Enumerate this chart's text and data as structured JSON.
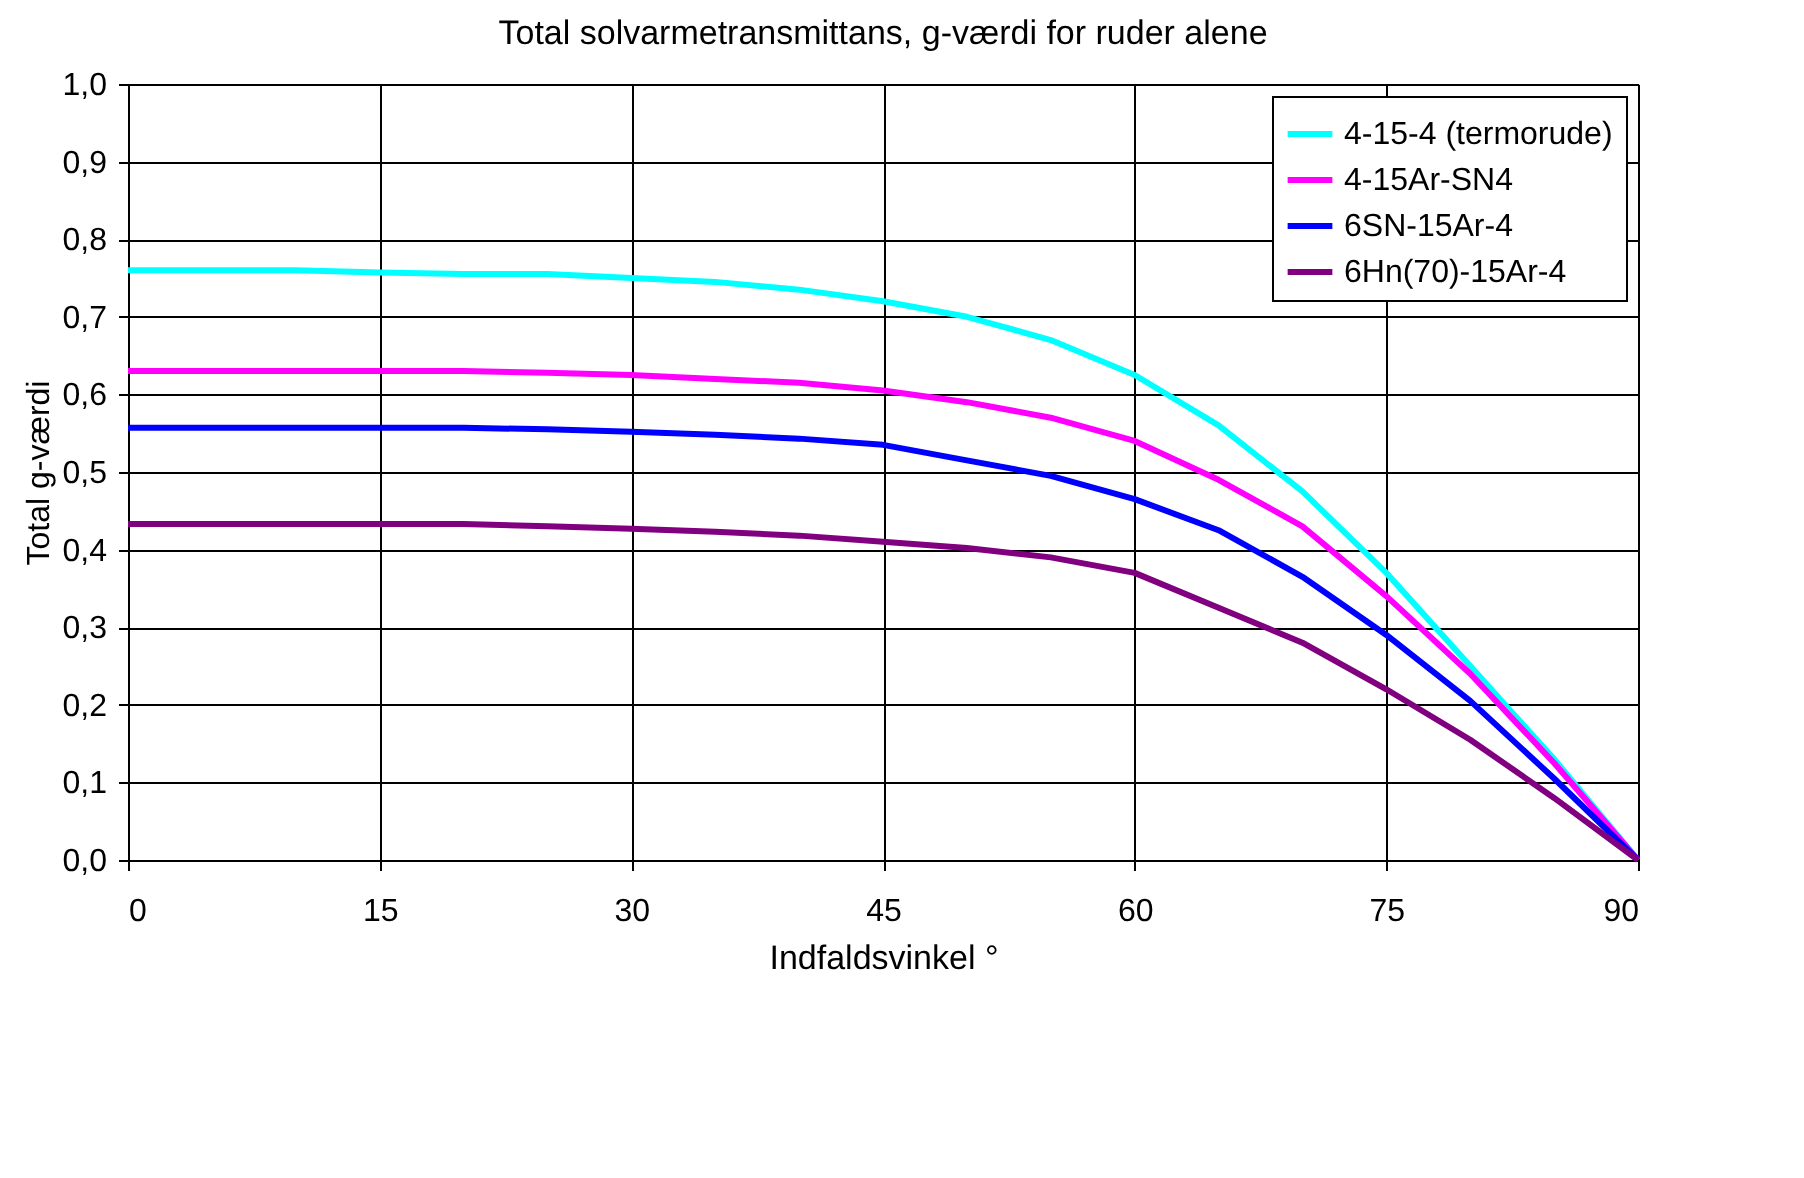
{
  "chart_data": {
    "type": "line",
    "title": "Total solvarmetransmittans, g-værdi for ruder alene",
    "xlabel": "Indfaldsvinkel °",
    "ylabel": "Total g-værdi",
    "x": [
      0,
      5,
      10,
      15,
      20,
      25,
      30,
      35,
      40,
      45,
      50,
      55,
      60,
      65,
      70,
      75,
      80,
      85,
      90
    ],
    "series": [
      {
        "name": "4-15-4 (termorude)",
        "color": "#00ffff",
        "values": [
          0.76,
          0.76,
          0.76,
          0.757,
          0.755,
          0.755,
          0.75,
          0.745,
          0.735,
          0.72,
          0.7,
          0.67,
          0.625,
          0.56,
          0.475,
          0.37,
          0.25,
          0.13,
          0
        ]
      },
      {
        "name": "4-15Ar-SN4",
        "color": "#ff00ff",
        "values": [
          0.63,
          0.63,
          0.63,
          0.63,
          0.63,
          0.628,
          0.625,
          0.62,
          0.615,
          0.605,
          0.59,
          0.57,
          0.54,
          0.49,
          0.43,
          0.34,
          0.24,
          0.125,
          0
        ]
      },
      {
        "name": "6SN-15Ar-4",
        "color": "#0000ff",
        "values": [
          0.557,
          0.557,
          0.557,
          0.557,
          0.557,
          0.555,
          0.552,
          0.548,
          0.543,
          0.535,
          0.515,
          0.495,
          0.465,
          0.425,
          0.365,
          0.29,
          0.205,
          0.105,
          0
        ]
      },
      {
        "name": "6Hn(70)-15Ar-4",
        "color": "#800080",
        "values": [
          0.433,
          0.433,
          0.433,
          0.433,
          0.433,
          0.43,
          0.427,
          0.423,
          0.418,
          0.41,
          0.402,
          0.39,
          0.37,
          0.325,
          0.28,
          0.22,
          0.155,
          0.08,
          0
        ]
      }
    ],
    "xlim": [
      0,
      90
    ],
    "xticks": [
      0,
      15,
      30,
      45,
      60,
      75,
      90
    ],
    "ylim": [
      0,
      1
    ],
    "yticks": [
      {
        "value": 0,
        "label": "0,0"
      },
      {
        "value": 0.1,
        "label": "0,1"
      },
      {
        "value": 0.2,
        "label": "0,2"
      },
      {
        "value": 0.3,
        "label": "0,3"
      },
      {
        "value": 0.4,
        "label": "0,4"
      },
      {
        "value": 0.5,
        "label": "0,5"
      },
      {
        "value": 0.6,
        "label": "0,6"
      },
      {
        "value": 0.7,
        "label": "0,7"
      },
      {
        "value": 0.8,
        "label": "0,8"
      },
      {
        "value": 0.9,
        "label": "0,9"
      },
      {
        "value": 1,
        "label": "1,0"
      }
    ],
    "grid": true,
    "legend": "top right",
    "marker": "none",
    "line_style": "solid"
  }
}
